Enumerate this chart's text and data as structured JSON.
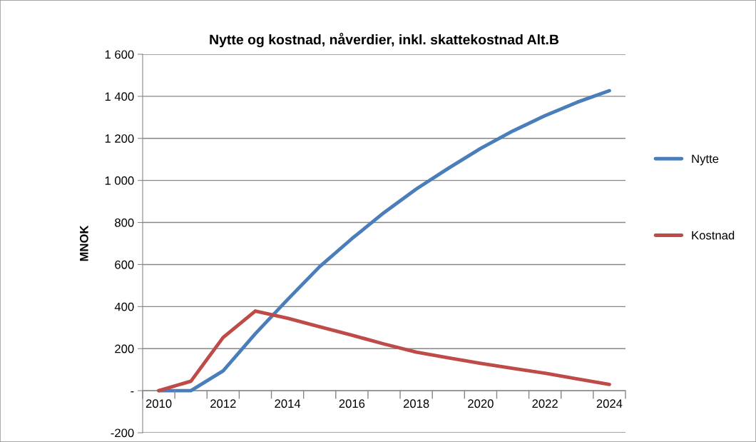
{
  "chart_data": {
    "type": "line",
    "title": "Nytte og kostnad, nåverdier, inkl. skattekostnad Alt.B",
    "ylabel": "MNOK",
    "categories": [
      "2010",
      null,
      "2012",
      null,
      "2014",
      null,
      "2016",
      null,
      "2018",
      null,
      "2020",
      null,
      "2022",
      null,
      "2024"
    ],
    "series": [
      {
        "name": "Nytte",
        "color": "#4a7ebb",
        "values": [
          0,
          0,
          94,
          271,
          433,
          590,
          723,
          847,
          959,
          1058,
          1152,
          1235,
          1308,
          1372,
          1427
        ]
      },
      {
        "name": "Kostnad",
        "color": "#be4b48",
        "values": [
          0,
          45,
          253,
          379,
          345,
          304,
          264,
          222,
          183,
          156,
          130,
          106,
          83,
          56,
          30
        ]
      }
    ],
    "ylim": [
      -200,
      1600
    ],
    "yticks": [
      {
        "value": -200,
        "label": "-200"
      },
      {
        "value": 0,
        "label": "-"
      },
      {
        "value": 200,
        "label": "200"
      },
      {
        "value": 400,
        "label": "400"
      },
      {
        "value": 600,
        "label": "600"
      },
      {
        "value": 800,
        "label": "800"
      },
      {
        "value": 1000,
        "label": "1 000"
      },
      {
        "value": 1200,
        "label": "1 200"
      },
      {
        "value": 1400,
        "label": "1 400"
      },
      {
        "value": 1600,
        "label": "1 600"
      }
    ],
    "grid": "y",
    "legend": "right",
    "marker": "none",
    "line_style": "solid"
  }
}
